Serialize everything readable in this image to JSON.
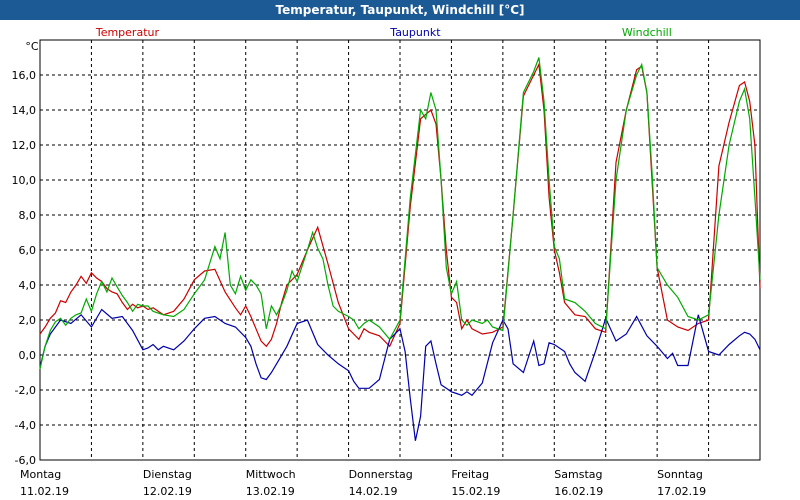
{
  "window": {
    "title": "Temperatur, Taupunkt, Windchill [°C]"
  },
  "chart_data": {
    "type": "line",
    "title": "Temperatur, Taupunkt, Windchill [°C]",
    "ylabel": "°C",
    "ylim": [
      -6,
      18
    ],
    "yticks": [
      -6,
      -4,
      -2,
      0,
      2,
      4,
      6,
      8,
      10,
      12,
      14,
      16
    ],
    "ytick_labels": [
      "-6,0",
      "-4,0",
      "-2,0",
      "0,0",
      "2,0",
      "4,0",
      "6,0",
      "8,0",
      "10,0",
      "12,0",
      "14,0",
      "16,0"
    ],
    "xlim": [
      0,
      7
    ],
    "grid": true,
    "day_labels": [
      {
        "day": "Montag",
        "date": "11.02.19"
      },
      {
        "day": "Dienstag",
        "date": "12.02.19"
      },
      {
        "day": "Mittwoch",
        "date": "13.02.19"
      },
      {
        "day": "Donnerstag",
        "date": "14.02.19"
      },
      {
        "day": "Freitag",
        "date": "15.02.19"
      },
      {
        "day": "Samstag",
        "date": "16.02.19"
      },
      {
        "day": "Sonntag",
        "date": "17.02.19"
      }
    ],
    "series": [
      {
        "name": "Temperatur",
        "color": "#cc0000",
        "x": [
          0,
          0.05,
          0.1,
          0.15,
          0.2,
          0.25,
          0.3,
          0.35,
          0.4,
          0.45,
          0.5,
          0.55,
          0.6,
          0.65,
          0.7,
          0.75,
          0.8,
          0.85,
          0.9,
          0.95,
          1.0,
          1.05,
          1.1,
          1.2,
          1.3,
          1.4,
          1.5,
          1.6,
          1.7,
          1.8,
          1.9,
          1.95,
          2.0,
          2.05,
          2.1,
          2.15,
          2.2,
          2.25,
          2.3,
          2.35,
          2.4,
          2.5,
          2.6,
          2.7,
          2.8,
          2.9,
          3.0,
          3.05,
          3.1,
          3.15,
          3.2,
          3.3,
          3.4,
          3.5,
          3.6,
          3.7,
          3.8,
          3.85,
          3.9,
          3.95,
          4.0,
          4.05,
          4.1,
          4.15,
          4.2,
          4.3,
          4.4,
          4.5,
          4.6,
          4.7,
          4.8,
          4.85,
          4.9,
          4.95,
          5.0,
          5.05,
          5.1,
          5.2,
          5.3,
          5.4,
          5.5,
          5.6,
          5.7,
          5.8,
          5.85,
          5.9,
          5.95,
          6.0,
          6.1,
          6.2,
          6.3,
          6.4,
          6.5,
          6.6,
          6.7,
          6.8,
          6.85,
          6.9,
          6.95,
          7.0
        ],
        "values": [
          1.2,
          1.6,
          2.1,
          2.4,
          3.1,
          3.0,
          3.6,
          4.0,
          4.5,
          4.1,
          4.7,
          4.4,
          4.2,
          3.8,
          3.6,
          3.5,
          3.0,
          2.6,
          2.9,
          2.7,
          2.8,
          2.6,
          2.7,
          2.3,
          2.5,
          3.2,
          4.3,
          4.8,
          4.9,
          3.6,
          2.7,
          2.3,
          2.8,
          2.2,
          1.5,
          0.8,
          0.5,
          0.9,
          1.8,
          3.0,
          4.0,
          4.6,
          6.0,
          7.3,
          5.2,
          3.0,
          1.5,
          1.2,
          0.9,
          1.5,
          1.3,
          1.1,
          0.5,
          1.8,
          8.5,
          13.5,
          14.0,
          13.2,
          10.0,
          6.0,
          3.3,
          3.0,
          1.5,
          2.0,
          1.5,
          1.2,
          1.3,
          1.6,
          8.0,
          14.8,
          16.0,
          16.6,
          14.0,
          9.0,
          6.0,
          4.7,
          3.0,
          2.3,
          2.2,
          1.5,
          1.3,
          11.0,
          14.0,
          16.3,
          16.5,
          15.0,
          10.0,
          5.0,
          2.0,
          1.6,
          1.4,
          1.8,
          2.0,
          10.8,
          13.3,
          15.4,
          15.6,
          14.5,
          12.0,
          3.8
        ]
      },
      {
        "name": "Taupunkt",
        "color": "#0000aa",
        "x": [
          0,
          0.05,
          0.1,
          0.2,
          0.3,
          0.4,
          0.5,
          0.6,
          0.7,
          0.8,
          0.9,
          1.0,
          1.05,
          1.1,
          1.15,
          1.2,
          1.3,
          1.4,
          1.5,
          1.6,
          1.7,
          1.8,
          1.9,
          2.0,
          2.05,
          2.1,
          2.15,
          2.2,
          2.25,
          2.3,
          2.4,
          2.5,
          2.6,
          2.7,
          2.8,
          2.9,
          3.0,
          3.05,
          3.1,
          3.2,
          3.3,
          3.4,
          3.5,
          3.55,
          3.6,
          3.65,
          3.7,
          3.75,
          3.8,
          3.85,
          3.9,
          3.95,
          4.0,
          4.05,
          4.1,
          4.15,
          4.2,
          4.3,
          4.4,
          4.5,
          4.55,
          4.6,
          4.7,
          4.8,
          4.85,
          4.9,
          4.95,
          5.0,
          5.1,
          5.15,
          5.2,
          5.3,
          5.4,
          5.5,
          5.6,
          5.7,
          5.8,
          5.9,
          6.0,
          6.1,
          6.15,
          6.2,
          6.3,
          6.4,
          6.5,
          6.6,
          6.7,
          6.8,
          6.85,
          6.9,
          6.95,
          7.0
        ],
        "values": [
          -0.7,
          0.5,
          1.2,
          2.0,
          1.8,
          2.3,
          1.6,
          2.6,
          2.1,
          2.2,
          1.4,
          0.3,
          0.4,
          0.6,
          0.3,
          0.5,
          0.3,
          0.8,
          1.5,
          2.1,
          2.2,
          1.8,
          1.6,
          1.0,
          0.5,
          -0.5,
          -1.3,
          -1.4,
          -1.0,
          -0.5,
          0.5,
          1.8,
          2.0,
          0.6,
          0.0,
          -0.5,
          -0.9,
          -1.5,
          -1.9,
          -1.9,
          -1.4,
          0.9,
          1.5,
          0.2,
          -2.5,
          -4.9,
          -3.5,
          0.5,
          0.8,
          -0.5,
          -1.7,
          -1.9,
          -2.1,
          -2.2,
          -2.3,
          -2.1,
          -2.3,
          -1.6,
          0.7,
          2.0,
          1.5,
          -0.5,
          -1.0,
          0.8,
          -0.6,
          -0.5,
          0.7,
          0.6,
          0.2,
          -0.5,
          -1.0,
          -1.5,
          0.2,
          2.1,
          0.8,
          1.2,
          2.2,
          1.1,
          0.5,
          -0.2,
          0.1,
          -0.6,
          -0.6,
          2.3,
          0.2,
          0.0,
          0.6,
          1.1,
          1.3,
          1.2,
          0.9,
          0.3
        ]
      },
      {
        "name": "Windchill",
        "color": "#00aa00",
        "x": [
          0,
          0.05,
          0.1,
          0.15,
          0.2,
          0.25,
          0.3,
          0.35,
          0.4,
          0.45,
          0.5,
          0.55,
          0.6,
          0.65,
          0.7,
          0.75,
          0.8,
          0.85,
          0.9,
          0.95,
          1.0,
          1.05,
          1.1,
          1.2,
          1.3,
          1.4,
          1.5,
          1.6,
          1.7,
          1.75,
          1.8,
          1.85,
          1.9,
          1.95,
          2.0,
          2.05,
          2.1,
          2.15,
          2.2,
          2.25,
          2.3,
          2.35,
          2.4,
          2.45,
          2.5,
          2.6,
          2.65,
          2.7,
          2.75,
          2.8,
          2.85,
          2.9,
          3.0,
          3.05,
          3.1,
          3.15,
          3.2,
          3.3,
          3.4,
          3.5,
          3.6,
          3.7,
          3.75,
          3.8,
          3.85,
          3.9,
          3.95,
          4.0,
          4.05,
          4.1,
          4.15,
          4.2,
          4.3,
          4.35,
          4.4,
          4.5,
          4.6,
          4.7,
          4.8,
          4.85,
          4.9,
          4.95,
          5.0,
          5.05,
          5.1,
          5.2,
          5.3,
          5.4,
          5.5,
          5.6,
          5.7,
          5.8,
          5.85,
          5.9,
          5.95,
          6.0,
          6.1,
          6.2,
          6.3,
          6.4,
          6.5,
          6.6,
          6.7,
          6.8,
          6.85,
          6.9,
          6.95,
          7.0
        ],
        "values": [
          -0.8,
          0.5,
          1.4,
          1.9,
          2.1,
          1.7,
          2.1,
          2.3,
          2.4,
          3.2,
          2.5,
          3.5,
          4.2,
          3.6,
          4.4,
          3.9,
          3.4,
          3.0,
          2.5,
          2.9,
          2.8,
          2.8,
          2.5,
          2.3,
          2.2,
          2.6,
          3.5,
          4.3,
          6.2,
          5.5,
          7.0,
          4.0,
          3.5,
          4.5,
          3.7,
          4.3,
          4.0,
          3.5,
          1.5,
          2.8,
          2.3,
          2.9,
          3.7,
          4.8,
          4.2,
          6.0,
          7.0,
          6.1,
          5.5,
          4.0,
          2.8,
          2.5,
          2.2,
          2.0,
          1.5,
          1.8,
          2.0,
          1.6,
          0.9,
          2.0,
          9.0,
          14.0,
          13.5,
          15.0,
          14.0,
          10.0,
          5.0,
          3.5,
          4.2,
          2.0,
          1.7,
          2.0,
          1.8,
          2.0,
          1.6,
          1.4,
          8.0,
          15.0,
          16.2,
          17.0,
          14.5,
          10.0,
          6.2,
          5.5,
          3.2,
          3.0,
          2.5,
          1.8,
          1.5,
          10.0,
          14.0,
          16.0,
          16.6,
          15.0,
          10.5,
          5.0,
          4.0,
          3.3,
          2.2,
          2.0,
          2.3,
          8.0,
          12.0,
          14.5,
          15.2,
          13.5,
          9.0,
          4.3
        ]
      }
    ]
  }
}
